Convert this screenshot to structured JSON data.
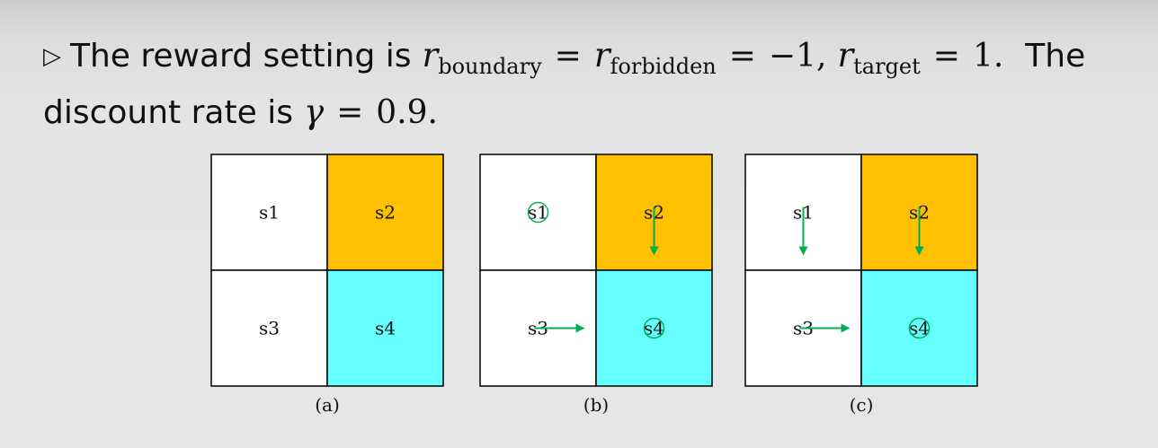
{
  "slide": {
    "line1": {
      "bullet": "▷",
      "text_a": "The reward setting is",
      "r": "r",
      "sub_boundary": "boundary",
      "eq": "=",
      "sub_forbidden": "forbidden",
      "value_neg": "−1,",
      "sub_target": "target",
      "value_pos": "1.",
      "text_b": "The"
    },
    "line2": {
      "text_a": "discount rate is",
      "gamma": "γ",
      "eq": "=",
      "value": "0.9."
    }
  },
  "grids": [
    {
      "caption": "(a)",
      "cells": [
        {
          "label": "s1",
          "color": "#ffffff",
          "arrow": "none",
          "stay": false
        },
        {
          "label": "s2",
          "color": "#ffc000",
          "arrow": "none",
          "stay": false
        },
        {
          "label": "s3",
          "color": "#ffffff",
          "arrow": "none",
          "stay": false
        },
        {
          "label": "s4",
          "color": "#66ffff",
          "arrow": "none",
          "stay": false
        }
      ]
    },
    {
      "caption": "(b)",
      "cells": [
        {
          "label": "s1",
          "color": "#ffffff",
          "arrow": "none",
          "stay": true
        },
        {
          "label": "s2",
          "color": "#ffc000",
          "arrow": "down",
          "stay": false
        },
        {
          "label": "s3",
          "color": "#ffffff",
          "arrow": "right",
          "stay": false
        },
        {
          "label": "s4",
          "color": "#66ffff",
          "arrow": "none",
          "stay": true
        }
      ]
    },
    {
      "caption": "(c)",
      "cells": [
        {
          "label": "s1",
          "color": "#ffffff",
          "arrow": "down",
          "stay": false
        },
        {
          "label": "s2",
          "color": "#ffc000",
          "arrow": "down",
          "stay": false
        },
        {
          "label": "s3",
          "color": "#ffffff",
          "arrow": "right",
          "stay": false
        },
        {
          "label": "s4",
          "color": "#66ffff",
          "arrow": "none",
          "stay": true
        }
      ]
    }
  ],
  "colors": {
    "arrow": "#00b050",
    "border": "#000000"
  }
}
